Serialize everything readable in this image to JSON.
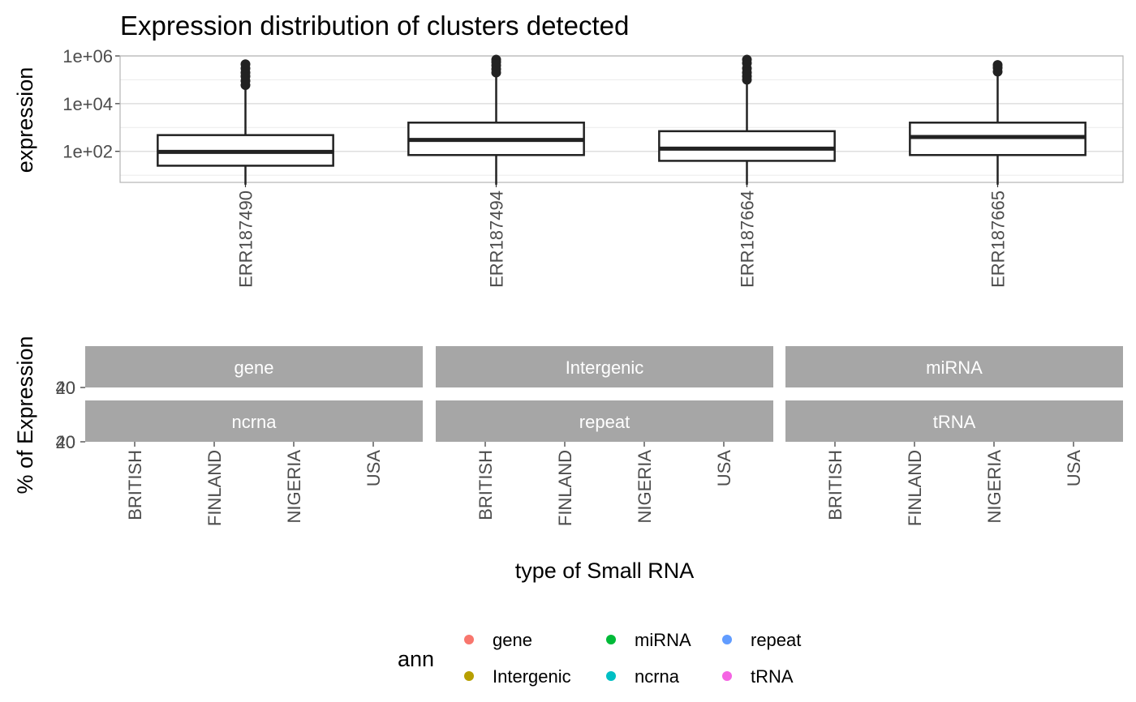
{
  "chart_data": [
    {
      "type": "box",
      "title": "Expression distribution of clusters detected",
      "xlabel": "",
      "ylabel": "expression",
      "y_scale": "log10",
      "ylim": [
        5,
        1000000
      ],
      "y_ticks": [
        100,
        10000,
        1000000
      ],
      "y_tick_labels": [
        "1e+02",
        "1e+04",
        "1e+06"
      ],
      "y_minor_ticks": [
        10,
        1000,
        100000
      ],
      "categories": [
        "ERR187490",
        "ERR187494",
        "ERR187664",
        "ERR187665"
      ],
      "boxes": [
        {
          "whisker_low": 4,
          "q1": 25,
          "median": 95,
          "q3": 480,
          "whisker_high": 50000,
          "outliers": [
            60000,
            90000,
            140000,
            200000,
            300000,
            450000
          ]
        },
        {
          "whisker_low": 4,
          "q1": 70,
          "median": 300,
          "q3": 1600,
          "whisker_high": 180000,
          "outliers": [
            200000,
            280000,
            400000,
            550000,
            700000
          ]
        },
        {
          "whisker_low": 4,
          "q1": 40,
          "median": 130,
          "q3": 700,
          "whisker_high": 80000,
          "outliers": [
            100000,
            140000,
            200000,
            300000,
            500000,
            700000
          ]
        },
        {
          "whisker_low": 4,
          "q1": 70,
          "median": 400,
          "q3": 1600,
          "whisker_high": 180000,
          "outliers": [
            220000,
            320000,
            420000
          ]
        }
      ],
      "grid": true
    },
    {
      "type": "facet",
      "xlabel": "type of Small RNA",
      "ylabel": "% of Expression",
      "panels": [
        "gene",
        "Intergenic",
        "miRNA",
        "ncrna",
        "repeat",
        "tRNA"
      ],
      "categories": [
        "BRITISH",
        "FINLAND",
        "NIGERIA",
        "USA"
      ],
      "y_tick_labels_row1": [
        "20",
        "40"
      ],
      "y_tick_labels_row2": [
        "20",
        "40"
      ],
      "legend": {
        "title": "ann",
        "position": "bottom",
        "items": [
          {
            "label": "gene",
            "color": "#F8766D"
          },
          {
            "label": "Intergenic",
            "color": "#B79F00"
          },
          {
            "label": "miRNA",
            "color": "#00BA38"
          },
          {
            "label": "ncrna",
            "color": "#00BFC4"
          },
          {
            "label": "repeat",
            "color": "#619CFF"
          },
          {
            "label": "tRNA",
            "color": "#F564E3"
          }
        ]
      }
    }
  ]
}
